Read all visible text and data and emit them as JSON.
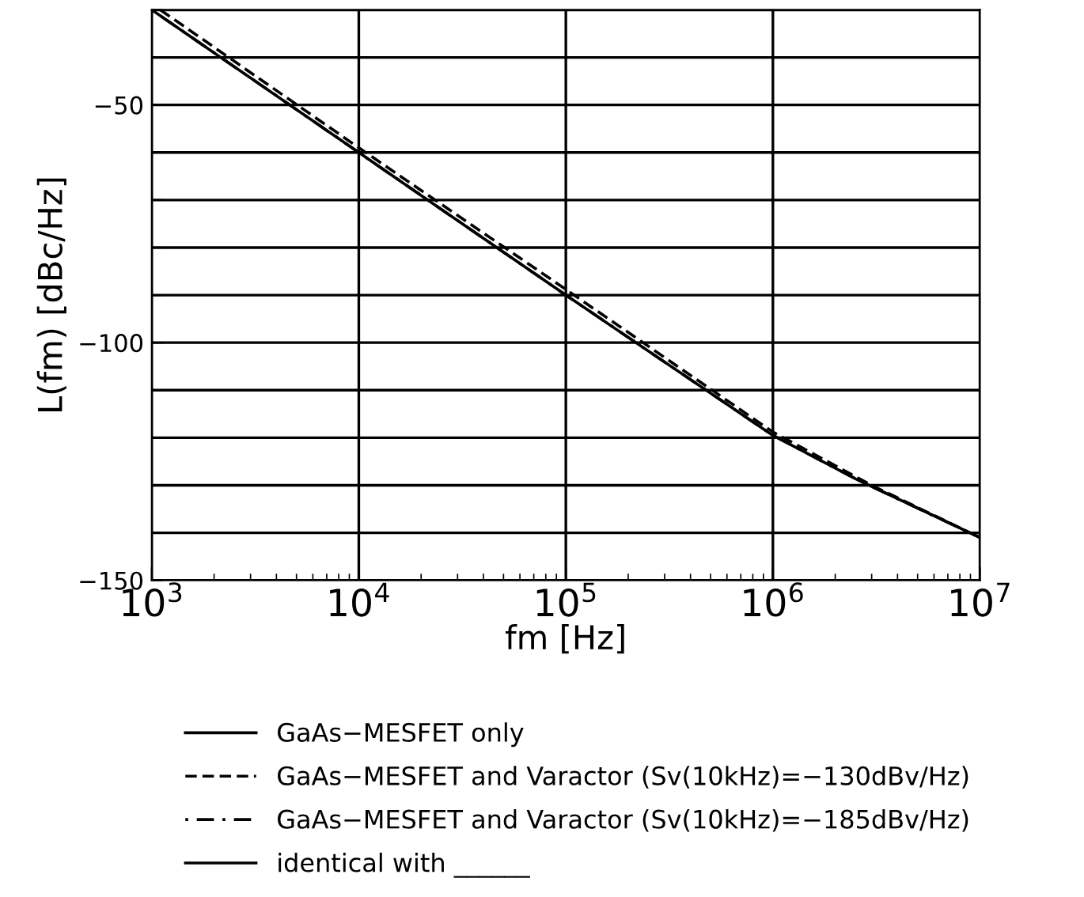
{
  "chart_data": {
    "type": "line",
    "xlabel": "fm [Hz]",
    "ylabel": "L(fm) [dBc/Hz]",
    "log": "x",
    "xlim": [
      1000,
      10000000
    ],
    "xticks": [
      {
        "value": 1000,
        "label": "10$^{3}$"
      },
      {
        "value": 10000,
        "label": "10$^{4}$"
      },
      {
        "value": 100000,
        "label": "10$^{5}$"
      },
      {
        "value": 1000000,
        "label": "10$^{6}$"
      },
      {
        "value": 10000000,
        "label": "10$^{7}$"
      }
    ],
    "ylim": [
      -150,
      -30
    ],
    "yticks": [
      {
        "value": -150,
        "label": "−150"
      },
      {
        "value": -140,
        "label": null
      },
      {
        "value": -130,
        "label": null
      },
      {
        "value": -120,
        "label": null
      },
      {
        "value": -110,
        "label": null
      },
      {
        "value": -100,
        "label": "−100"
      },
      {
        "value": -90,
        "label": null
      },
      {
        "value": -80,
        "label": null
      },
      {
        "value": -70,
        "label": null
      },
      {
        "value": -60,
        "label": null
      },
      {
        "value": -50,
        "label": "−50"
      },
      {
        "value": -40,
        "label": null
      },
      {
        "value": -30,
        "label": null
      }
    ],
    "grid": true,
    "legend": "bottom",
    "marker": "none",
    "series": [
      {
        "name": "GaAs−MESFET and Varactor (Sv(10kHz)=−185dBv/Hz)",
        "color": "#000000",
        "line_style": "dashdot",
        "x": [
          1000,
          10000,
          100000,
          1000000,
          2600000,
          10000000
        ],
        "values": [
          -30,
          -60,
          -90,
          -119.5,
          -129,
          -141
        ]
      },
      {
        "name": "GaAs−MESFET only",
        "color": "#000000",
        "line_style": "solid",
        "x": [
          1000,
          10000,
          100000,
          1000000,
          2600000,
          10000000
        ],
        "values": [
          -30,
          -60,
          -90,
          -119.5,
          -129,
          -141
        ]
      },
      {
        "name": "GaAs−MESFET and Varactor (Sv(10kHz)=−130dBv/Hz)",
        "color": "#000000",
        "line_style": "dashed",
        "x": [
          1100,
          10000,
          100000,
          1000000,
          3000000,
          10000000
        ],
        "values": [
          -30,
          -59,
          -88.8,
          -118.8,
          -130,
          -141
        ]
      }
    ],
    "annotations": [
      "identical with ______"
    ]
  }
}
